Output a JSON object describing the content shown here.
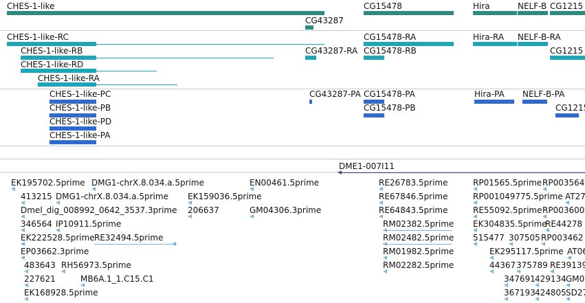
{
  "colors": {
    "gene": "#2e8b80",
    "transcript_ra": "#1aa7b8",
    "transcript_pa": "#2f6ad1",
    "est": "#7db4dd",
    "dme_line": "#5b4a8a"
  },
  "gene_track": {
    "labels": [
      "CHES-1-like",
      "CG15478",
      "Hira",
      "NELF-B",
      "CG1215",
      "CG43287"
    ]
  },
  "rna_track": {
    "labels": [
      "CHES-1-like-RC",
      "CHES-1-like-RB",
      "CHES-1-like-RD",
      "CHES-1-like-RA",
      "CG15478-RA",
      "CG43287-RA",
      "CG15478-RB",
      "Hira-RA",
      "NELF-B-RA",
      "CG1215"
    ]
  },
  "protein_track": {
    "labels": [
      "CHES-1-like-PC",
      "CHES-1-like-PB",
      "CHES-1-like-PD",
      "CHES-1-like-PA",
      "CG43287-PA",
      "CG15478-PA",
      "CG15478-PB",
      "Hira-PA",
      "NELF-B-PA",
      "CG1215"
    ]
  },
  "dme_track": {
    "label": "DME1-007I11"
  },
  "est_track": {
    "labels": [
      "EK195702.5prime",
      "DMG1-chrX.8.034.a.5prime",
      "EN00461.5prime",
      "RE26783.5prime",
      "RP01565.5prime",
      "RP003564",
      "413215",
      "DMG1-chrX.8.034.a.5prime",
      "EK159036.5prime",
      "RE67846.5prime",
      "RP001049775.5prime",
      "AT27",
      "Dmel_dig_008992_0642_3537.3prime",
      "206637",
      "GM04306.3prime",
      "RE64843.5prime",
      "RE55092.5prime",
      "RP003600",
      "346564",
      "IP10911.5prime",
      "RM02382.5prime",
      "EK304835.5prime",
      "RE44278",
      "EK222528.5prime",
      "RE32494.5prime",
      "RM02482.5prime",
      "515477",
      "307505",
      "RP003462",
      "EP03662.3prime",
      "RM01982.5prime",
      "EK295117.5prime",
      "AT06",
      "483643",
      "RH56973.5prime",
      "RM02282.5prime",
      "44367",
      "375789",
      "RE39139",
      "227621",
      "MB6A.1_1.C15.C1",
      "347691",
      "429134",
      "GM0",
      "EK168928.5prime",
      "367193",
      "424805",
      "SD27"
    ]
  }
}
